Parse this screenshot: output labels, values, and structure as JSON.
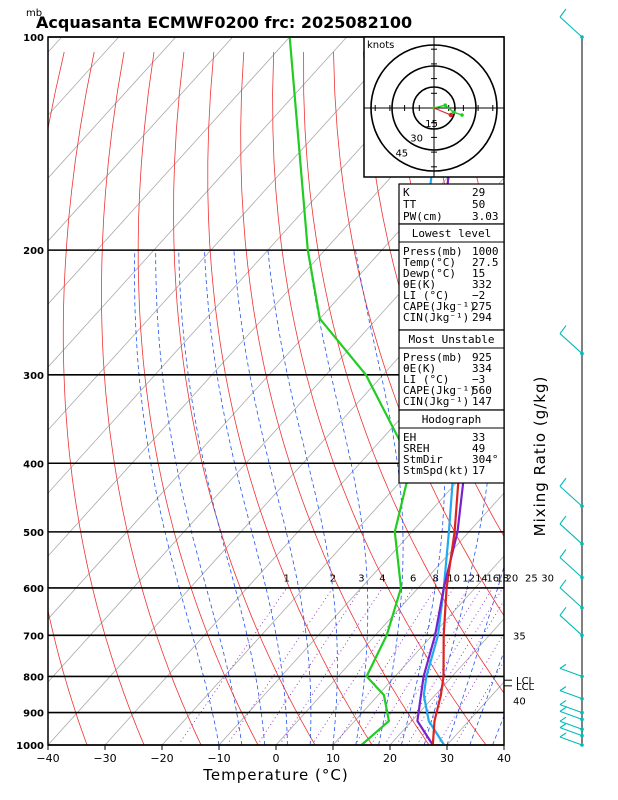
{
  "chart_data": {
    "type": "skew-t",
    "title": "Acquasanta ECMWF0200 frc: 2025082100",
    "unit_label": "mb",
    "xlabel": "Temperature (°C)",
    "ylabel": "Mixing Ratio (g/kg)",
    "xlim": [
      -40,
      40
    ],
    "plim": [
      1000,
      100
    ],
    "x_ticks": [
      "−40",
      "−30",
      "−20",
      "−10",
      "0",
      "10",
      "20",
      "30",
      "40"
    ],
    "p_ticks": [
      "100",
      "200",
      "300",
      "400",
      "500",
      "600",
      "700",
      "800",
      "900",
      "1000"
    ],
    "mixing_ratio_labels": [
      "1",
      "2",
      "3",
      "4",
      "6",
      "8",
      "10",
      "12",
      "14",
      "16",
      "18",
      "20",
      "25",
      "30"
    ],
    "theta_e_labels": [
      "35",
      "40"
    ],
    "lcl_label": "LCL",
    "colors": {
      "temperature": "#dd2222",
      "dewpoint": "#22cc22",
      "parcel": "#7722cc",
      "virtual": "#22aaee",
      "dry_adiabat": "#ee3333",
      "moist_adiabat": "#2255ee",
      "isotherm": "#aaaaaa",
      "mixing_ratio": "#8833cc",
      "wind": "#00bbbb"
    },
    "temperature_profile": [
      {
        "p": 1000,
        "t": 27.5
      },
      {
        "p": 925,
        "t": 24.0
      },
      {
        "p": 850,
        "t": 21.0
      },
      {
        "p": 800,
        "t": 18.5
      },
      {
        "p": 700,
        "t": 12.0
      },
      {
        "p": 600,
        "t": 5.0
      },
      {
        "p": 500,
        "t": -2.5
      },
      {
        "p": 400,
        "t": -12.5
      },
      {
        "p": 300,
        "t": -27.0
      },
      {
        "p": 250,
        "t": -37.0
      },
      {
        "p": 200,
        "t": -43.0
      },
      {
        "p": 100,
        "t": -50.0
      }
    ],
    "dewpoint_profile": [
      {
        "p": 1000,
        "t": 15.0
      },
      {
        "p": 925,
        "t": 16.0
      },
      {
        "p": 850,
        "t": 11.0
      },
      {
        "p": 800,
        "t": 5.0
      },
      {
        "p": 700,
        "t": 2.0
      },
      {
        "p": 600,
        "t": -3.0
      },
      {
        "p": 500,
        "t": -13.0
      },
      {
        "p": 400,
        "t": -21.0
      },
      {
        "p": 300,
        "t": -43.0
      },
      {
        "p": 250,
        "t": -60.0
      },
      {
        "p": 200,
        "t": -73.0
      },
      {
        "p": 100,
        "t": -110.0
      }
    ],
    "parcel_profile": [
      {
        "p": 1000,
        "t": 27.5
      },
      {
        "p": 925,
        "t": 21.0
      },
      {
        "p": 850,
        "t": 17.5
      },
      {
        "p": 800,
        "t": 15.0
      },
      {
        "p": 700,
        "t": 10.5
      },
      {
        "p": 600,
        "t": 4.5
      },
      {
        "p": 500,
        "t": -2.0
      },
      {
        "p": 400,
        "t": -11.5
      },
      {
        "p": 300,
        "t": -26.0
      },
      {
        "p": 200,
        "t": -50.0
      },
      {
        "p": 150,
        "t": -62.0
      },
      {
        "p": 110,
        "t": -70.0
      }
    ],
    "virtual_profile": [
      {
        "p": 1000,
        "t": 29.5
      },
      {
        "p": 925,
        "t": 23.0
      },
      {
        "p": 850,
        "t": 18.0
      },
      {
        "p": 800,
        "t": 15.5
      },
      {
        "p": 700,
        "t": 11.0
      },
      {
        "p": 600,
        "t": 4.5
      },
      {
        "p": 500,
        "t": -3.5
      },
      {
        "p": 400,
        "t": -13.5
      },
      {
        "p": 300,
        "t": -29.0
      },
      {
        "p": 200,
        "t": -53.0
      },
      {
        "p": 150,
        "t": -65.0
      },
      {
        "p": 110,
        "t": -73.0
      }
    ],
    "lcl_pressures": [
      810,
      825
    ],
    "wind_levels": [
      100,
      280,
      460,
      520,
      580,
      640,
      700,
      800,
      860,
      900,
      920,
      950,
      970,
      1000
    ],
    "hodograph": {
      "unit": "knots",
      "ring_labels": [
        "15",
        "30",
        "45"
      ],
      "points": [
        [
          0,
          0
        ],
        [
          8,
          2
        ],
        [
          14,
          -3
        ],
        [
          20,
          -5
        ]
      ],
      "storm_motion": [
        12,
        -5
      ]
    }
  },
  "stats": {
    "general": [
      {
        "label": "K",
        "value": "29"
      },
      {
        "label": "TT",
        "value": "50"
      },
      {
        "label": "PW(cm)",
        "value": "3.03"
      }
    ],
    "lowest_level": {
      "title": "Lowest level",
      "rows": [
        {
          "label": "Press(mb)",
          "value": "1000"
        },
        {
          "label": "Temp(°C)",
          "value": "27.5"
        },
        {
          "label": "Dewp(°C)",
          "value": "15"
        },
        {
          "label": "θE(K)",
          "value": "332"
        },
        {
          "label": "LI (°C)",
          "value": "−2"
        },
        {
          "label": "CAPE(Jkg⁻¹)",
          "value": "275"
        },
        {
          "label": "CIN(Jkg⁻¹)",
          "value": "294"
        }
      ]
    },
    "most_unstable": {
      "title": "Most Unstable",
      "rows": [
        {
          "label": "Press(mb)",
          "value": "925"
        },
        {
          "label": "θE(K)",
          "value": "334"
        },
        {
          "label": "LI (°C)",
          "value": "−3"
        },
        {
          "label": "CAPE(Jkg⁻¹)",
          "value": "560"
        },
        {
          "label": "CIN(Jkg⁻¹)",
          "value": "147"
        }
      ]
    },
    "hodograph": {
      "title": "Hodograph",
      "rows": [
        {
          "label": "EH",
          "value": "33"
        },
        {
          "label": "SREH",
          "value": "49"
        },
        {
          "label": "StmDir",
          "value": "304°"
        },
        {
          "label": "StmSpd(kt)",
          "value": "17"
        }
      ]
    }
  }
}
